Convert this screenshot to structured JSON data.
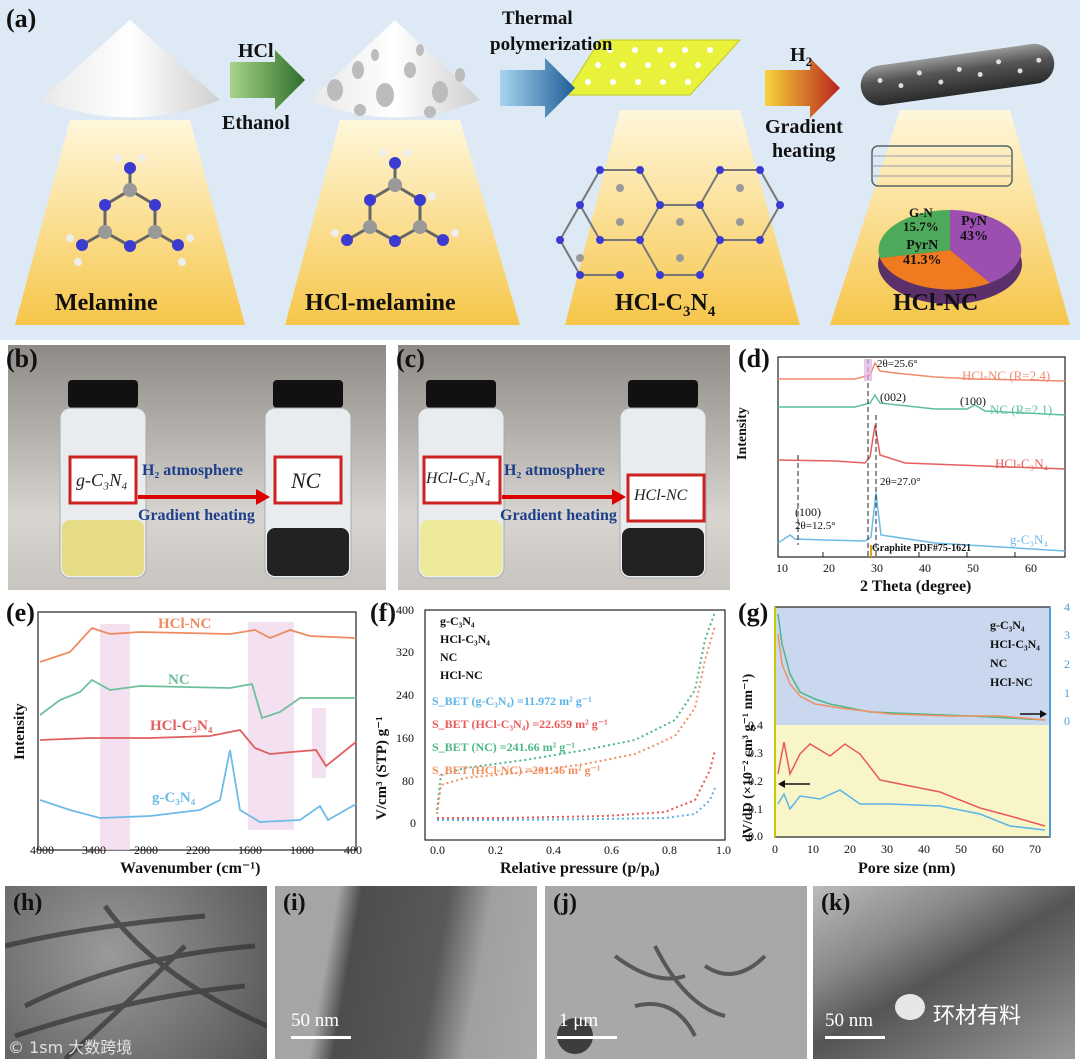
{
  "panel_a": {
    "label": "(a)",
    "arrow1_top": "HCl",
    "arrow1_bottom": "Ethanol",
    "arrow2_top": "Thermal",
    "arrow2_top2": "polymerization",
    "arrow3_top": "H",
    "arrow3_top_sub": "2",
    "arrow3_bottom": "Gradient",
    "arrow3_bottom2": "heating",
    "stage1": "Melamine",
    "stage2": "HCl-melamine",
    "stage3_main": "HCl-C",
    "stage3_sub1": "3",
    "stage3_n": "N",
    "stage3_sub2": "4",
    "stage4": "HCl-NC",
    "pie": [
      {
        "name": "PyN",
        "value": "43%",
        "color": "#9b4fb0"
      },
      {
        "name": "PyrN",
        "value": "41.3%",
        "color": "#f07a1f"
      },
      {
        "name": "G-N",
        "value": "15.7%",
        "color": "#4caa5a"
      }
    ]
  },
  "panel_b": {
    "label": "(b)",
    "arrow_top": "H₂ atmosphere",
    "arrow_bottom": "Gradient heating",
    "vial1": "g-C₃N₄",
    "vial2": "NC"
  },
  "panel_c": {
    "label": "(c)",
    "arrow_top": "H₂ atmosphere",
    "arrow_bottom": "Gradient heating",
    "vial1": "HCl-C₃N₄",
    "vial2": "HCl-NC"
  },
  "panel_d": {
    "label": "(d)",
    "xlabel": "2 Theta (degree)",
    "ylabel": "Intensity",
    "xticks": [
      "10",
      "20",
      "30",
      "40",
      "50",
      "60"
    ],
    "ann_25": "2θ=25.6°",
    "ann_002": "(002)",
    "ann_100b": "(100)",
    "ann_100a": "(100)",
    "ann_12": "2θ=12.5°",
    "ann_27": "2θ=27.0°",
    "ann_pdf": "Graphite PDF#75-1621",
    "series": [
      "HCl-NC (R=2.4)",
      "NC (R=2.1)",
      "HCl-C₃N₄",
      "g-C₃N₄"
    ]
  },
  "panel_e": {
    "label": "(e)",
    "xlabel": "Wavenumber (cm⁻¹)",
    "ylabel": "Intensity",
    "xticks": [
      "4000",
      "3400",
      "2800",
      "2200",
      "1600",
      "1000",
      "400"
    ],
    "series": [
      "HCl-NC",
      "NC",
      "HCl-C₃N₄",
      "g-C₃N₄"
    ]
  },
  "panel_f": {
    "label": "(f)",
    "xlabel": "Relative pressure (p/p₀)",
    "ylabel": "V/cm³ (STP) g⁻¹",
    "xticks": [
      "0.0",
      "0.2",
      "0.4",
      "0.6",
      "0.8",
      "1.0"
    ],
    "yticks": [
      "0",
      "80",
      "160",
      "240",
      "320",
      "400"
    ],
    "legend": [
      "g-C₃N₄",
      "HCl-C₃N₄",
      "NC",
      "HCl-NC"
    ],
    "bet": [
      "S_BET (g-C₃N₄) =11.972 m² g⁻¹",
      "S_BET (HCl-C₃N₄) =22.659 m² g⁻¹",
      "S_BET (NC) =241.66 m² g⁻¹",
      "S_BET (HCl-NC) =201.46 m² g⁻¹"
    ]
  },
  "panel_g": {
    "label": "(g)",
    "xlabel": "Pore size (nm)",
    "ylabel": "dV/dD (×10⁻² cm³ g⁻¹ nm⁻¹)",
    "xticks": [
      "0",
      "10",
      "20",
      "30",
      "40",
      "50",
      "60",
      "70"
    ],
    "yticks_left": [
      "0.0",
      "0.1",
      "0.2",
      "0.3",
      "0.4"
    ],
    "yticks_right": [
      "0",
      "1",
      "2",
      "3",
      "4"
    ],
    "legend": [
      "g-C₃N₄",
      "HCl-C₃N₄",
      "NC",
      "HCl-NC"
    ]
  },
  "tem": [
    {
      "label": "(h)",
      "scale": ""
    },
    {
      "label": "(i)",
      "scale": "50 nm"
    },
    {
      "label": "(j)",
      "scale": "1 μm"
    },
    {
      "label": "(k)",
      "scale": "50 nm"
    }
  ],
  "watermark": "环材有料",
  "watermark2": "© 1sm 大数跨境",
  "colors": {
    "g": "#5ab4e8",
    "hcl_c3n4": "#e85a5a",
    "nc": "#4cb88a",
    "hcl_nc": "#f09060",
    "panel_a_bg": "#d9e8f5"
  }
}
